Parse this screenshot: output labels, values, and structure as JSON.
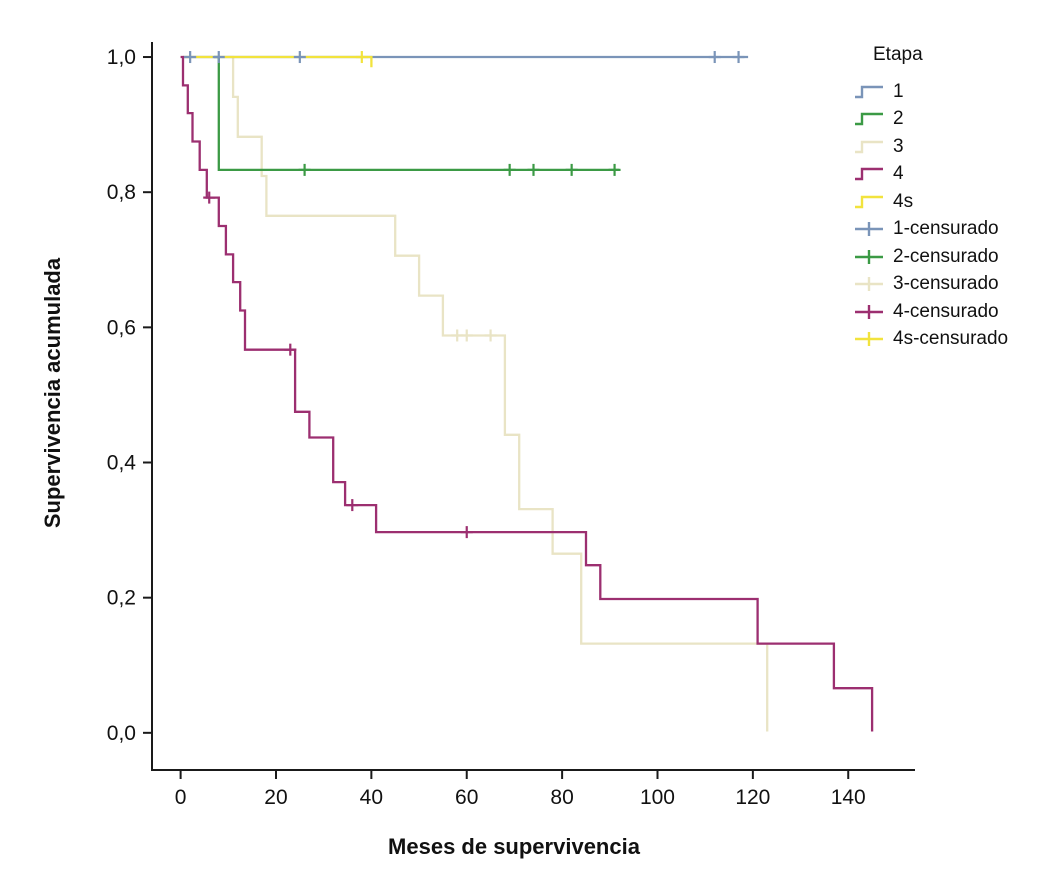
{
  "chart_data": {
    "type": "line",
    "subtype": "kaplan-meier-step-survival",
    "title": "",
    "xlabel": "Meses de supervivencia",
    "ylabel": "Supervivencia acumulada",
    "axis_color": "#1a1a1a",
    "x_axis": {
      "range": [
        -6,
        154
      ],
      "ticks": [
        0,
        20,
        40,
        60,
        80,
        100,
        120,
        140
      ],
      "tick_labels": [
        "0",
        "20",
        "40",
        "60",
        "80",
        "100",
        "120",
        "140"
      ]
    },
    "y_axis": {
      "range": [
        -0.055,
        1.04
      ],
      "ticks": [
        0.0,
        0.2,
        0.4,
        0.6,
        0.8,
        1.0
      ],
      "tick_labels": [
        "0,0",
        "0,2",
        "0,4",
        "0,6",
        "0,8",
        "1,0"
      ]
    },
    "series": [
      {
        "name": "1",
        "color": "#7A94B8",
        "points": [
          [
            0.5,
            1.0
          ],
          [
            119,
            1.0
          ]
        ],
        "censored": [
          [
            2,
            1.0
          ],
          [
            8,
            1.0
          ],
          [
            25,
            1.0
          ],
          [
            112,
            1.0
          ],
          [
            117,
            1.0
          ]
        ]
      },
      {
        "name": "2",
        "color": "#3B9A45",
        "points": [
          [
            7,
            1.0
          ],
          [
            8,
            1.0
          ],
          [
            8,
            0.833
          ],
          [
            92,
            0.833
          ]
        ],
        "censored": [
          [
            26,
            0.833
          ],
          [
            69,
            0.833
          ],
          [
            74,
            0.833
          ],
          [
            82,
            0.833
          ],
          [
            91,
            0.833
          ]
        ]
      },
      {
        "name": "3",
        "color": "#E9E4C5",
        "points": [
          [
            0,
            1.0
          ],
          [
            11,
            1.0
          ],
          [
            11,
            0.941
          ],
          [
            12,
            0.941
          ],
          [
            12,
            0.882
          ],
          [
            17,
            0.882
          ],
          [
            17,
            0.824
          ],
          [
            18,
            0.824
          ],
          [
            18,
            0.765
          ],
          [
            45,
            0.765
          ],
          [
            45,
            0.706
          ],
          [
            50,
            0.706
          ],
          [
            50,
            0.647
          ],
          [
            55,
            0.647
          ],
          [
            55,
            0.588
          ],
          [
            68,
            0.588
          ],
          [
            68,
            0.441
          ],
          [
            71,
            0.441
          ],
          [
            71,
            0.331
          ],
          [
            78,
            0.331
          ],
          [
            78,
            0.265
          ],
          [
            84,
            0.265
          ],
          [
            84,
            0.132
          ],
          [
            123,
            0.132
          ],
          [
            123,
            0.002
          ]
        ],
        "censored": [
          [
            58,
            0.588
          ],
          [
            60,
            0.588
          ],
          [
            65,
            0.588
          ]
        ]
      },
      {
        "name": "4",
        "color": "#9C2F70",
        "points": [
          [
            0,
            1.0
          ],
          [
            0.5,
            1.0
          ],
          [
            0.5,
            0.958
          ],
          [
            1.5,
            0.958
          ],
          [
            1.5,
            0.917
          ],
          [
            2.5,
            0.917
          ],
          [
            2.5,
            0.875
          ],
          [
            4,
            0.875
          ],
          [
            4,
            0.833
          ],
          [
            5.5,
            0.833
          ],
          [
            5.5,
            0.792
          ],
          [
            8,
            0.792
          ],
          [
            8,
            0.75
          ],
          [
            9.5,
            0.75
          ],
          [
            9.5,
            0.708
          ],
          [
            11,
            0.708
          ],
          [
            11,
            0.667
          ],
          [
            12.5,
            0.667
          ],
          [
            12.5,
            0.625
          ],
          [
            13.5,
            0.625
          ],
          [
            13.5,
            0.567
          ],
          [
            24,
            0.567
          ],
          [
            24,
            0.475
          ],
          [
            27,
            0.475
          ],
          [
            27,
            0.437
          ],
          [
            32,
            0.437
          ],
          [
            32,
            0.371
          ],
          [
            34.5,
            0.371
          ],
          [
            34.5,
            0.337
          ],
          [
            41,
            0.337
          ],
          [
            41,
            0.297
          ],
          [
            85,
            0.297
          ],
          [
            85,
            0.248
          ],
          [
            88,
            0.248
          ],
          [
            88,
            0.198
          ],
          [
            121,
            0.198
          ],
          [
            121,
            0.132
          ],
          [
            137,
            0.132
          ],
          [
            137,
            0.066
          ],
          [
            145,
            0.066
          ],
          [
            145,
            0.002
          ]
        ],
        "censored": [
          [
            6,
            0.792
          ],
          [
            23,
            0.567
          ],
          [
            36,
            0.337
          ],
          [
            60,
            0.297
          ]
        ]
      },
      {
        "name": "4s",
        "color": "#F2E33D",
        "points": [
          [
            1,
            1.0
          ],
          [
            40,
            1.0
          ],
          [
            40,
            0.985
          ]
        ],
        "censored": [
          [
            38,
            1.0
          ]
        ]
      }
    ],
    "legend": {
      "title": "Etapa",
      "entries": [
        {
          "label": "1",
          "color": "#7A94B8",
          "censored": false
        },
        {
          "label": "2",
          "color": "#3B9A45",
          "censored": false
        },
        {
          "label": "3",
          "color": "#E9E4C5",
          "censored": false
        },
        {
          "label": "4",
          "color": "#9C2F70",
          "censored": false
        },
        {
          "label": "4s",
          "color": "#F2E33D",
          "censored": false
        },
        {
          "label": "1-censurado",
          "color": "#7A94B8",
          "censored": true
        },
        {
          "label": "2-censurado",
          "color": "#3B9A45",
          "censored": true
        },
        {
          "label": "3-censurado",
          "color": "#E9E4C5",
          "censored": true
        },
        {
          "label": "4-censurado",
          "color": "#9C2F70",
          "censored": true
        },
        {
          "label": "4s-censurado",
          "color": "#F2E33D",
          "censored": true
        }
      ]
    }
  }
}
